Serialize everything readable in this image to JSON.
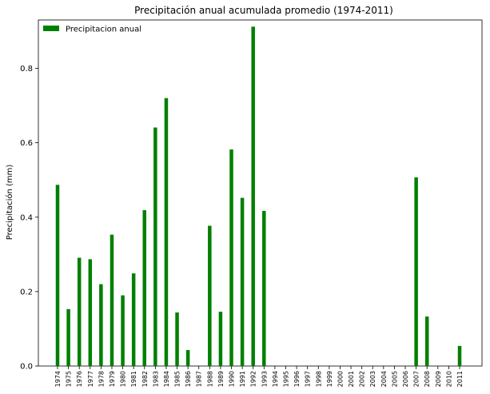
{
  "chart_data": {
    "type": "bar",
    "title": "Precipitación anual acumulada promedio (1974-2011)",
    "xlabel": "",
    "ylabel": "Precipitación (mm)",
    "ylim": [
      0,
      0.93
    ],
    "yticks": [
      "0.0",
      "0.2",
      "0.4",
      "0.6",
      "0.8"
    ],
    "ytick_values": [
      0.0,
      0.2,
      0.4,
      0.6,
      0.8
    ],
    "grid": false,
    "legend": {
      "position": "top-left",
      "entries": [
        "Precipitacion anual"
      ]
    },
    "categories": [
      "1974",
      "1975",
      "1976",
      "1977",
      "1978",
      "1979",
      "1980",
      "1981",
      "1982",
      "1983",
      "1984",
      "1985",
      "1986",
      "1987",
      "1988",
      "1989",
      "1990",
      "1991",
      "1992",
      "1993",
      "1994",
      "1995",
      "1996",
      "1997",
      "1998",
      "1999",
      "2000",
      "2001",
      "2002",
      "2003",
      "2004",
      "2005",
      "2006",
      "2007",
      "2008",
      "2009",
      "2010",
      "2011"
    ],
    "series": [
      {
        "name": "Precipitacion anual",
        "color": "#008000",
        "values": [
          0.487,
          0.153,
          0.291,
          0.287,
          0.22,
          0.353,
          0.19,
          0.249,
          0.419,
          0.641,
          0.72,
          0.144,
          0.043,
          0.0,
          0.377,
          0.146,
          0.582,
          0.452,
          0.912,
          0.417,
          0.0,
          0.0,
          0.0,
          0.0,
          0.0,
          0.0,
          0.0,
          0.0,
          0.0,
          0.0,
          0.0,
          0.0,
          0.0,
          0.507,
          0.133,
          0.0,
          0.0,
          0.054
        ]
      }
    ]
  }
}
